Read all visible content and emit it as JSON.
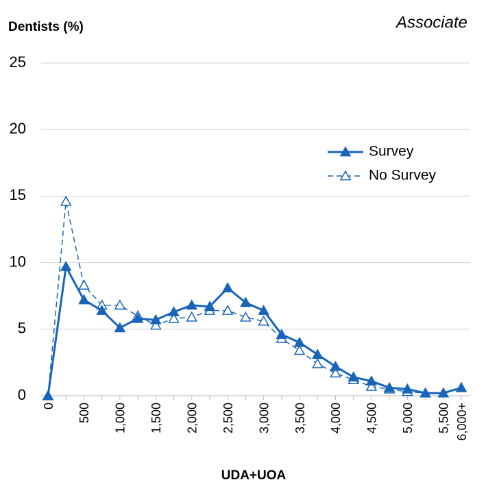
{
  "chart_data": {
    "type": "line",
    "title": "Dentists (%)",
    "subtitle": "Associate",
    "x_label": "UDA+UOA",
    "categories": [
      "0",
      null,
      "500",
      null,
      "1,000",
      null,
      "1,500",
      null,
      "2,000",
      null,
      "2,500",
      null,
      "3,000",
      null,
      "3,500",
      null,
      "4,000",
      null,
      "4,500",
      null,
      "5,000",
      null,
      "5,500",
      "6,000+"
    ],
    "series": [
      {
        "name": "Survey",
        "color": "#1764b8",
        "style": "solid",
        "marker": "filled",
        "values": [
          0,
          9.7,
          7.2,
          6.4,
          5.1,
          5.8,
          5.7,
          6.3,
          6.8,
          6.7,
          8.1,
          7.0,
          6.4,
          4.6,
          4.0,
          3.1,
          2.2,
          1.4,
          1.1,
          0.6,
          0.5,
          0.2,
          0.2,
          0.6
        ]
      },
      {
        "name": "No Survey",
        "color": "#1764b8",
        "style": "dashed",
        "marker": "open",
        "values": [
          0,
          14.6,
          8.3,
          6.8,
          6.8,
          6.0,
          5.3,
          5.8,
          5.9,
          6.4,
          6.4,
          5.9,
          5.6,
          4.3,
          3.4,
          2.4,
          1.7,
          1.2,
          0.7,
          0.5,
          0.3,
          0.2,
          0.2,
          0.6
        ]
      }
    ],
    "ylim": [
      0,
      25
    ],
    "yticks": [
      0,
      5,
      10,
      15,
      20,
      25
    ],
    "grid": true,
    "legend": "right"
  }
}
